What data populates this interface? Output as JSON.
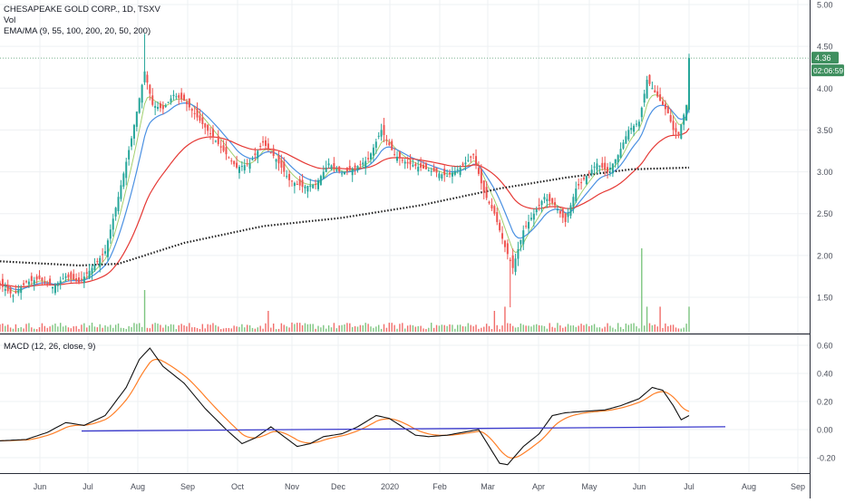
{
  "header": {
    "symbol_line": "CHESAPEAKE GOLD CORP., 1D, TSXV",
    "vol_label": "Vol",
    "ema_label": "EMA/MA (9, 55, 100, 200, 20, 50, 200)",
    "macd_label": "MACD (12, 26, close, 9)"
  },
  "price_badge": "4.36",
  "time_badge": "02:06:59",
  "colors": {
    "up": "#26a69a",
    "down": "#ef5350",
    "ema_fast": "#4a90e2",
    "ma_mid": "#e53935",
    "ma_long": "#222222",
    "ema_short": "#8bc34a",
    "macd": "#111111",
    "signal": "#ff7f27",
    "trendline": "#3a3acc",
    "badge_price": "#3f8f5f",
    "badge_time": "#3f8f5f"
  },
  "chart_data": [
    {
      "type": "candlestick",
      "ylim": [
        1.1,
        5.05
      ],
      "y_ticks": [
        "5.00",
        "4.50",
        "4.00",
        "3.50",
        "3.00",
        "2.50",
        "2.00",
        "1.50"
      ],
      "x_ticks": [
        "Jun",
        "Jul",
        "Aug",
        "Sep",
        "Oct",
        "Nov",
        "Dec",
        "2020",
        "Feb",
        "Mar",
        "Apr",
        "May",
        "Jun",
        "Jul",
        "Aug",
        "Sep"
      ],
      "last_price": 4.36,
      "close_anchors": [
        [
          0,
          1.65
        ],
        [
          5,
          1.52
        ],
        [
          10,
          1.68
        ],
        [
          15,
          1.72
        ],
        [
          20,
          1.62
        ],
        [
          25,
          1.75
        ],
        [
          30,
          1.68
        ],
        [
          35,
          1.85
        ],
        [
          40,
          2.05
        ],
        [
          45,
          2.7
        ],
        [
          50,
          3.4
        ],
        [
          55,
          4.2
        ],
        [
          58,
          3.8
        ],
        [
          62,
          3.75
        ],
        [
          66,
          3.92
        ],
        [
          70,
          3.85
        ],
        [
          75,
          3.65
        ],
        [
          80,
          3.45
        ],
        [
          85,
          3.25
        ],
        [
          90,
          3.05
        ],
        [
          95,
          3.1
        ],
        [
          100,
          3.35
        ],
        [
          105,
          3.15
        ],
        [
          110,
          2.9
        ],
        [
          115,
          2.82
        ],
        [
          120,
          2.85
        ],
        [
          125,
          3.1
        ],
        [
          130,
          2.98
        ],
        [
          135,
          3.05
        ],
        [
          140,
          3.15
        ],
        [
          145,
          3.5
        ],
        [
          150,
          3.2
        ],
        [
          155,
          3.1
        ],
        [
          160,
          3.05
        ],
        [
          165,
          3.0
        ],
        [
          170,
          2.95
        ],
        [
          175,
          3.05
        ],
        [
          180,
          3.2
        ],
        [
          184,
          2.75
        ],
        [
          188,
          2.5
        ],
        [
          192,
          2.1
        ],
        [
          195,
          1.85
        ],
        [
          199,
          2.3
        ],
        [
          203,
          2.5
        ],
        [
          207,
          2.7
        ],
        [
          211,
          2.6
        ],
        [
          215,
          2.4
        ],
        [
          219,
          2.8
        ],
        [
          223,
          2.95
        ],
        [
          227,
          3.1
        ],
        [
          231,
          3.0
        ],
        [
          235,
          3.2
        ],
        [
          239,
          3.5
        ],
        [
          243,
          3.6
        ],
        [
          246,
          4.1
        ],
        [
          250,
          3.9
        ],
        [
          254,
          3.7
        ],
        [
          256,
          3.5
        ],
        [
          258,
          3.45
        ],
        [
          261,
          3.8
        ],
        [
          262,
          4.36
        ]
      ],
      "ema_long_200_level": 3.05,
      "volume_spikes": [
        [
          55,
          0.5
        ],
        [
          102,
          0.25
        ],
        [
          188,
          0.25
        ],
        [
          192,
          0.3
        ],
        [
          244,
          1.0
        ],
        [
          246,
          0.3
        ],
        [
          251,
          0.3
        ],
        [
          262,
          0.3
        ]
      ]
    },
    {
      "type": "line",
      "name": "MACD (12, 26, close, 9)",
      "ylim": [
        -0.3,
        0.65
      ],
      "y_ticks": [
        "0.60",
        "0.40",
        "0.20",
        "0.00",
        "-0.20"
      ],
      "macd_anchors": [
        [
          0,
          -0.08
        ],
        [
          10,
          -0.07
        ],
        [
          18,
          -0.02
        ],
        [
          25,
          0.05
        ],
        [
          32,
          0.03
        ],
        [
          40,
          0.1
        ],
        [
          48,
          0.3
        ],
        [
          53,
          0.5
        ],
        [
          57,
          0.58
        ],
        [
          62,
          0.45
        ],
        [
          70,
          0.33
        ],
        [
          78,
          0.15
        ],
        [
          86,
          0.0
        ],
        [
          92,
          -0.1
        ],
        [
          97,
          -0.06
        ],
        [
          103,
          0.02
        ],
        [
          108,
          -0.05
        ],
        [
          113,
          -0.12
        ],
        [
          118,
          -0.1
        ],
        [
          123,
          -0.05
        ],
        [
          130,
          -0.03
        ],
        [
          136,
          0.02
        ],
        [
          143,
          0.1
        ],
        [
          148,
          0.08
        ],
        [
          153,
          0.02
        ],
        [
          158,
          -0.04
        ],
        [
          163,
          -0.05
        ],
        [
          170,
          -0.04
        ],
        [
          176,
          -0.02
        ],
        [
          182,
          0.0
        ],
        [
          186,
          -0.12
        ],
        [
          190,
          -0.24
        ],
        [
          193,
          -0.25
        ],
        [
          199,
          -0.12
        ],
        [
          205,
          -0.03
        ],
        [
          210,
          0.1
        ],
        [
          215,
          0.12
        ],
        [
          222,
          0.13
        ],
        [
          230,
          0.14
        ],
        [
          236,
          0.17
        ],
        [
          243,
          0.22
        ],
        [
          248,
          0.3
        ],
        [
          252,
          0.28
        ],
        [
          256,
          0.17
        ],
        [
          259,
          0.07
        ],
        [
          262,
          0.1
        ]
      ],
      "trendline_from": [
        0,
        -0.01
      ],
      "trendline_to": [
        262,
        0.02
      ]
    }
  ]
}
